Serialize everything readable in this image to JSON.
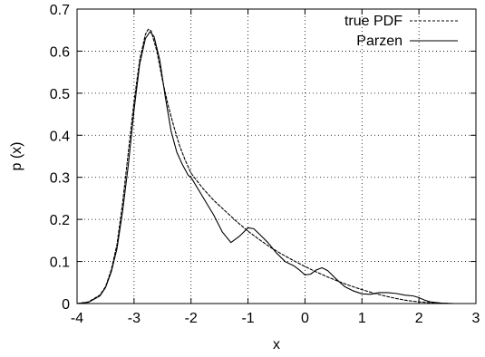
{
  "chart_data": {
    "type": "line",
    "title": "",
    "xlabel": "x",
    "ylabel": "p (x)",
    "xlim": [
      -4,
      3
    ],
    "ylim": [
      0,
      0.7
    ],
    "xticks": [
      "-4",
      "-3",
      "-2",
      "-1",
      "0",
      "1",
      "2",
      "3"
    ],
    "yticks": [
      "0",
      "0.1",
      "0.2",
      "0.3",
      "0.4",
      "0.5",
      "0.6",
      "0.7"
    ],
    "grid": true,
    "legend_position": "top-right",
    "series": [
      {
        "name": "true PDF",
        "style": "dashed",
        "color": "#000000",
        "x": [
          -4,
          -3.8,
          -3.6,
          -3.5,
          -3.4,
          -3.3,
          -3.2,
          -3.1,
          -3.0,
          -2.9,
          -2.8,
          -2.75,
          -2.7,
          -2.6,
          -2.5,
          -2.4,
          -2.3,
          -2.2,
          -2.1,
          -2.0,
          -1.8,
          -1.6,
          -1.4,
          -1.2,
          -1.0,
          -0.8,
          -0.6,
          -0.4,
          -0.2,
          0.0,
          0.2,
          0.4,
          0.6,
          0.8,
          1.0,
          1.2,
          1.4,
          1.6,
          1.8,
          2.0,
          2.2,
          2.4,
          2.6,
          2.8,
          3.0
        ],
        "y": [
          0.0,
          0.004,
          0.02,
          0.04,
          0.08,
          0.14,
          0.24,
          0.36,
          0.48,
          0.58,
          0.64,
          0.652,
          0.648,
          0.6,
          0.53,
          0.47,
          0.42,
          0.375,
          0.34,
          0.31,
          0.275,
          0.245,
          0.22,
          0.195,
          0.172,
          0.152,
          0.133,
          0.117,
          0.102,
          0.088,
          0.075,
          0.063,
          0.052,
          0.042,
          0.033,
          0.025,
          0.018,
          0.012,
          0.007,
          0.004,
          0.002,
          0.001,
          0.0,
          0.0,
          0.0
        ]
      },
      {
        "name": "Parzen",
        "style": "solid",
        "color": "#000000",
        "x": [
          -4,
          -3.8,
          -3.6,
          -3.5,
          -3.4,
          -3.3,
          -3.2,
          -3.1,
          -3.0,
          -2.9,
          -2.8,
          -2.72,
          -2.65,
          -2.55,
          -2.45,
          -2.35,
          -2.25,
          -2.15,
          -2.05,
          -2.0,
          -1.8,
          -1.6,
          -1.45,
          -1.3,
          -1.15,
          -1.0,
          -0.9,
          -0.8,
          -0.65,
          -0.5,
          -0.35,
          -0.2,
          -0.1,
          0.0,
          0.1,
          0.2,
          0.3,
          0.4,
          0.55,
          0.7,
          0.85,
          1.0,
          1.15,
          1.3,
          1.45,
          1.6,
          1.75,
          1.9,
          2.0,
          2.1,
          2.2,
          2.4,
          2.6,
          2.8,
          3.0
        ],
        "y": [
          0.0,
          0.003,
          0.018,
          0.038,
          0.075,
          0.13,
          0.22,
          0.33,
          0.46,
          0.57,
          0.63,
          0.646,
          0.635,
          0.58,
          0.49,
          0.41,
          0.36,
          0.33,
          0.305,
          0.3,
          0.255,
          0.21,
          0.17,
          0.145,
          0.16,
          0.18,
          0.178,
          0.165,
          0.145,
          0.12,
          0.1,
          0.09,
          0.08,
          0.068,
          0.07,
          0.08,
          0.085,
          0.078,
          0.058,
          0.04,
          0.03,
          0.023,
          0.022,
          0.026,
          0.026,
          0.024,
          0.02,
          0.018,
          0.014,
          0.008,
          0.004,
          0.001,
          0.0,
          0.0,
          0.0
        ]
      }
    ]
  }
}
